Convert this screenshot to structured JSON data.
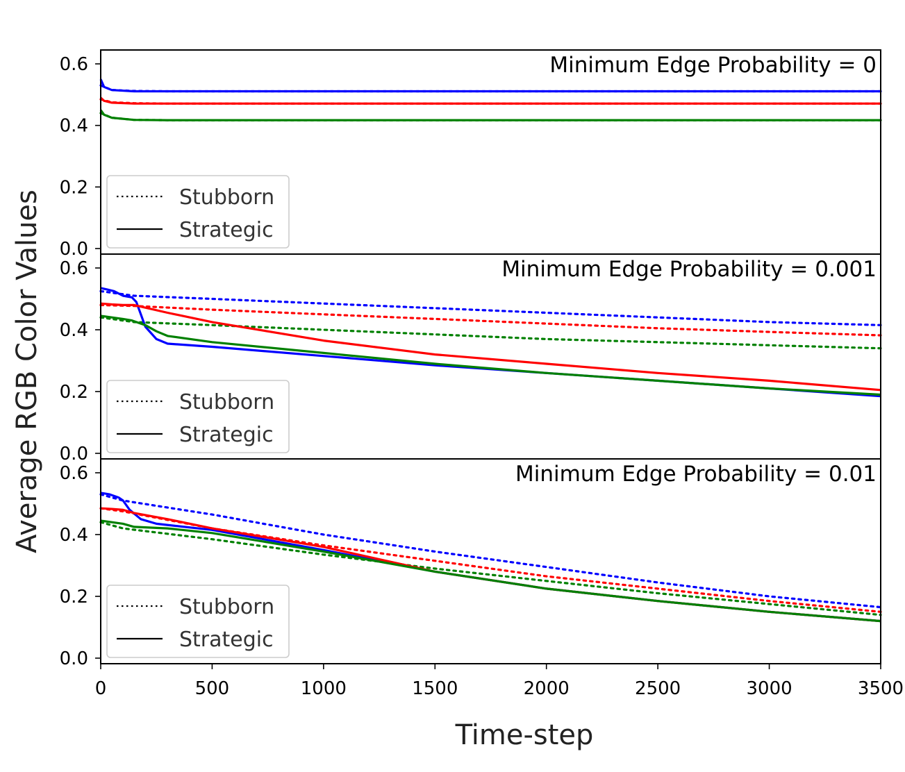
{
  "figure": {
    "ylabel": "Average RGB Color Values",
    "xlabel": "Time-step"
  },
  "chart_data": [
    {
      "type": "line",
      "title": "Minimum Edge Probability = 0",
      "xlabel": "Time-step",
      "ylabel": "Average RGB Color Values",
      "xlim": [
        0,
        3500
      ],
      "ylim": [
        0,
        0.6
      ],
      "xticks": [
        "0",
        "500",
        "1000",
        "1500",
        "2000",
        "2500",
        "3000",
        "3500"
      ],
      "yticks": [
        "0.0",
        "0.2",
        "0.4",
        "0.6"
      ],
      "grid": false,
      "legend": {
        "placement": "lower-left",
        "entries": [
          {
            "label": "Stubborn",
            "style": "dotted"
          },
          {
            "label": "Strategic",
            "style": "solid"
          }
        ]
      },
      "series": [
        {
          "color": "#0000ff",
          "style": "dotted",
          "x": [
            0,
            50,
            150,
            300,
            500,
            1000,
            2000,
            3500
          ],
          "y": [
            0.53,
            0.515,
            0.512,
            0.511,
            0.511,
            0.511,
            0.511,
            0.511
          ]
        },
        {
          "color": "#ff0000",
          "style": "dotted",
          "x": [
            0,
            50,
            150,
            300,
            500,
            1000,
            2000,
            3500
          ],
          "y": [
            0.485,
            0.475,
            0.472,
            0.471,
            0.471,
            0.471,
            0.471,
            0.471
          ]
        },
        {
          "color": "#008000",
          "style": "dotted",
          "x": [
            0,
            50,
            150,
            300,
            500,
            1000,
            2000,
            3500
          ],
          "y": [
            0.44,
            0.425,
            0.418,
            0.417,
            0.417,
            0.417,
            0.417,
            0.417
          ]
        },
        {
          "color": "#0000ff",
          "style": "solid",
          "x": [
            0,
            15,
            50,
            150,
            300,
            500,
            1000,
            2000,
            3500
          ],
          "y": [
            0.55,
            0.525,
            0.515,
            0.511,
            0.511,
            0.511,
            0.511,
            0.511,
            0.511
          ]
        },
        {
          "color": "#ff0000",
          "style": "solid",
          "x": [
            0,
            15,
            50,
            150,
            300,
            500,
            1000,
            2000,
            3500
          ],
          "y": [
            0.49,
            0.48,
            0.474,
            0.471,
            0.471,
            0.471,
            0.471,
            0.471,
            0.471
          ]
        },
        {
          "color": "#008000",
          "style": "solid",
          "x": [
            0,
            15,
            50,
            150,
            300,
            500,
            1000,
            2000,
            3500
          ],
          "y": [
            0.45,
            0.435,
            0.425,
            0.418,
            0.417,
            0.417,
            0.417,
            0.417,
            0.417
          ]
        }
      ]
    },
    {
      "type": "line",
      "title": "Minimum Edge Probability = 0.001",
      "xlabel": "Time-step",
      "ylabel": "Average RGB Color Values",
      "xlim": [
        0,
        3500
      ],
      "ylim": [
        0,
        0.6
      ],
      "xticks": [
        "0",
        "500",
        "1000",
        "1500",
        "2000",
        "2500",
        "3000",
        "3500"
      ],
      "yticks": [
        "0.0",
        "0.2",
        "0.4",
        "0.6"
      ],
      "grid": false,
      "legend": {
        "placement": "lower-left",
        "entries": [
          {
            "label": "Stubborn",
            "style": "dotted"
          },
          {
            "label": "Strategic",
            "style": "solid"
          }
        ]
      },
      "series": [
        {
          "color": "#0000ff",
          "style": "dotted",
          "x": [
            0,
            150,
            500,
            1000,
            1500,
            2000,
            2500,
            3000,
            3500
          ],
          "y": [
            0.525,
            0.51,
            0.5,
            0.485,
            0.47,
            0.455,
            0.44,
            0.425,
            0.415
          ]
        },
        {
          "color": "#ff0000",
          "style": "dotted",
          "x": [
            0,
            150,
            500,
            1000,
            1500,
            2000,
            2500,
            3000,
            3500
          ],
          "y": [
            0.48,
            0.477,
            0.465,
            0.45,
            0.435,
            0.42,
            0.405,
            0.393,
            0.382
          ]
        },
        {
          "color": "#008000",
          "style": "dotted",
          "x": [
            0,
            150,
            500,
            1000,
            1500,
            2000,
            2500,
            3000,
            3500
          ],
          "y": [
            0.44,
            0.425,
            0.415,
            0.4,
            0.385,
            0.37,
            0.36,
            0.35,
            0.34
          ]
        },
        {
          "color": "#0000ff",
          "style": "solid",
          "x": [
            0,
            30,
            60,
            100,
            140,
            160,
            180,
            200,
            250,
            300,
            500,
            1000,
            1500,
            2000,
            2500,
            3000,
            3500
          ],
          "y": [
            0.535,
            0.53,
            0.525,
            0.51,
            0.505,
            0.49,
            0.45,
            0.41,
            0.37,
            0.355,
            0.345,
            0.315,
            0.285,
            0.26,
            0.235,
            0.21,
            0.185
          ]
        },
        {
          "color": "#ff0000",
          "style": "solid",
          "x": [
            0,
            50,
            100,
            150,
            300,
            500,
            1000,
            1500,
            2000,
            2500,
            3000,
            3500
          ],
          "y": [
            0.485,
            0.482,
            0.48,
            0.48,
            0.455,
            0.425,
            0.365,
            0.32,
            0.29,
            0.26,
            0.235,
            0.205
          ]
        },
        {
          "color": "#008000",
          "style": "solid",
          "x": [
            0,
            50,
            100,
            140,
            160,
            200,
            250,
            300,
            500,
            1000,
            1500,
            2000,
            2500,
            3000,
            3500
          ],
          "y": [
            0.445,
            0.44,
            0.435,
            0.43,
            0.425,
            0.415,
            0.395,
            0.38,
            0.36,
            0.325,
            0.29,
            0.26,
            0.235,
            0.21,
            0.19
          ]
        }
      ]
    },
    {
      "type": "line",
      "title": "Minimum Edge Probability = 0.01",
      "xlabel": "Time-step",
      "ylabel": "Average RGB Color Values",
      "xlim": [
        0,
        3500
      ],
      "ylim": [
        0,
        0.6
      ],
      "xticks": [
        "0",
        "500",
        "1000",
        "1500",
        "2000",
        "2500",
        "3000",
        "3500"
      ],
      "yticks": [
        "0.0",
        "0.2",
        "0.4",
        "0.6"
      ],
      "grid": false,
      "legend": {
        "placement": "lower-left",
        "entries": [
          {
            "label": "Stubborn",
            "style": "dotted"
          },
          {
            "label": "Strategic",
            "style": "solid"
          }
        ]
      },
      "series": [
        {
          "color": "#0000ff",
          "style": "dotted",
          "x": [
            0,
            100,
            500,
            1000,
            1500,
            2000,
            2500,
            3000,
            3500
          ],
          "y": [
            0.53,
            0.51,
            0.465,
            0.4,
            0.345,
            0.295,
            0.245,
            0.2,
            0.165
          ]
        },
        {
          "color": "#ff0000",
          "style": "dotted",
          "x": [
            0,
            100,
            500,
            1000,
            1500,
            2000,
            2500,
            3000,
            3500
          ],
          "y": [
            0.485,
            0.475,
            0.42,
            0.365,
            0.315,
            0.265,
            0.225,
            0.185,
            0.15
          ]
        },
        {
          "color": "#008000",
          "style": "dotted",
          "x": [
            0,
            100,
            500,
            1000,
            1500,
            2000,
            2500,
            3000,
            3500
          ],
          "y": [
            0.44,
            0.42,
            0.385,
            0.335,
            0.29,
            0.25,
            0.21,
            0.175,
            0.14
          ]
        },
        {
          "color": "#0000ff",
          "style": "solid",
          "x": [
            0,
            40,
            80,
            100,
            130,
            180,
            250,
            500,
            1000,
            1500,
            2000,
            2500,
            3000,
            3500
          ],
          "y": [
            0.535,
            0.53,
            0.52,
            0.51,
            0.48,
            0.45,
            0.435,
            0.415,
            0.35,
            0.28,
            0.225,
            0.185,
            0.15,
            0.12
          ]
        },
        {
          "color": "#ff0000",
          "style": "solid",
          "x": [
            0,
            50,
            100,
            150,
            300,
            500,
            1000,
            1500,
            2000,
            2500,
            3000,
            3500
          ],
          "y": [
            0.485,
            0.483,
            0.48,
            0.47,
            0.45,
            0.42,
            0.36,
            0.28,
            0.225,
            0.185,
            0.15,
            0.12
          ]
        },
        {
          "color": "#008000",
          "style": "solid",
          "x": [
            0,
            50,
            100,
            150,
            300,
            500,
            1000,
            1500,
            2000,
            2500,
            3000,
            3500
          ],
          "y": [
            0.445,
            0.44,
            0.435,
            0.425,
            0.42,
            0.405,
            0.345,
            0.28,
            0.225,
            0.185,
            0.15,
            0.12
          ]
        }
      ]
    }
  ]
}
